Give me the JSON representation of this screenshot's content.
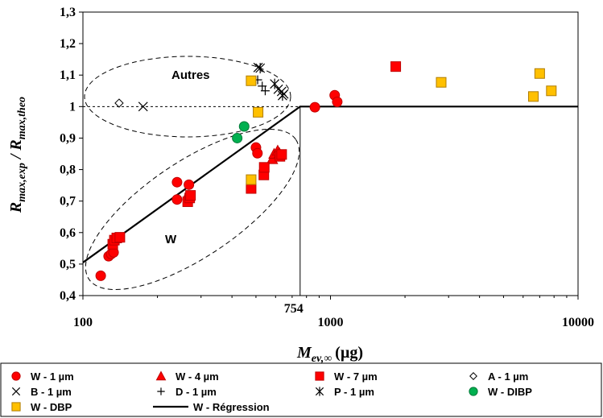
{
  "colors": {
    "red": "#ff0000",
    "red_stroke": "#c00000",
    "green": "#00b050",
    "green_stroke": "#007a38",
    "orange": "#ffc000",
    "orange_stroke": "#b07d00",
    "black": "#000000"
  },
  "chart_data": {
    "type": "scatter",
    "x_scale": "log",
    "xlim": [
      100,
      10000
    ],
    "ylim": [
      0.4,
      1.3
    ],
    "x_ticks": [
      "100",
      "1000",
      "10000"
    ],
    "extra_x_tick": "754",
    "y_ticks": [
      "0,4",
      "0,5",
      "0,6",
      "0,7",
      "0,8",
      "0,9",
      "1",
      "1,1",
      "1,2",
      "1,3"
    ],
    "xlabel": {
      "main": "M",
      "sub": "ev,∞",
      "unit": "(µg)"
    },
    "ylabel": {
      "r1": "R",
      "s1": "max,exp",
      "slash": " / ",
      "r2": "R",
      "s2": "max,theo"
    },
    "annotations": {
      "autres": "Autres",
      "w": "W"
    },
    "reference_line_y": 1,
    "vertical_line_x": 754,
    "series": [
      {
        "name": "W - 1 µm",
        "marker": "circle",
        "color": "red",
        "points": [
          [
            118,
            0.463
          ],
          [
            127,
            0.525
          ],
          [
            130,
            0.532
          ],
          [
            133,
            0.537
          ],
          [
            240,
            0.705
          ],
          [
            240,
            0.76
          ],
          [
            268,
            0.752
          ],
          [
            268,
            0.712
          ],
          [
            500,
            0.87
          ],
          [
            507,
            0.852
          ],
          [
            865,
            0.998
          ],
          [
            1040,
            1.036
          ],
          [
            1065,
            1.015
          ]
        ]
      },
      {
        "name": "W - 4 µm",
        "marker": "triangle",
        "color": "red",
        "points": [
          [
            582,
            0.833
          ],
          [
            592,
            0.85
          ],
          [
            612,
            0.86
          ],
          [
            622,
            0.852
          ]
        ]
      },
      {
        "name": "W - 7 µm",
        "marker": "square",
        "color": "red",
        "points": [
          [
            132,
            0.563
          ],
          [
            134,
            0.576
          ],
          [
            137,
            0.583
          ],
          [
            141,
            0.585
          ],
          [
            265,
            0.698
          ],
          [
            270,
            0.71
          ],
          [
            272,
            0.718
          ],
          [
            478,
            0.74
          ],
          [
            538,
            0.783
          ],
          [
            540,
            0.807
          ],
          [
            625,
            0.842
          ],
          [
            635,
            0.848
          ],
          [
            1835,
            1.127
          ]
        ]
      },
      {
        "name": "A - 1 µm",
        "marker": "diamond",
        "color": "black",
        "points": [
          [
            140,
            1.011
          ]
        ]
      },
      {
        "name": "B - 1 µm",
        "marker": "x",
        "color": "black",
        "points": [
          [
            175,
            1.0
          ],
          [
            510,
            1.124
          ],
          [
            615,
            1.055
          ],
          [
            635,
            1.048
          ],
          [
            648,
            1.04
          ]
        ]
      },
      {
        "name": "D - 1 µm",
        "marker": "plus",
        "color": "black",
        "points": [
          [
            508,
            1.085
          ],
          [
            530,
            1.065
          ],
          [
            545,
            1.05
          ]
        ]
      },
      {
        "name": "P - 1 µm",
        "marker": "asterisk",
        "color": "black",
        "points": [
          [
            520,
            1.122
          ],
          [
            595,
            1.072
          ],
          [
            640,
            1.035
          ]
        ]
      },
      {
        "name": "W - DIBP",
        "marker": "circle",
        "color": "green",
        "points": [
          [
            420,
            0.9
          ],
          [
            448,
            0.937
          ]
        ]
      },
      {
        "name": "W - DBP",
        "marker": "square",
        "color": "orange",
        "points": [
          [
            478,
            0.768
          ],
          [
            478,
            1.082
          ],
          [
            510,
            0.982
          ],
          [
            2800,
            1.077
          ],
          [
            6600,
            1.032
          ],
          [
            7000,
            1.105
          ],
          [
            7800,
            1.05
          ]
        ]
      },
      {
        "name": "W - Régression",
        "marker": "line",
        "color": "black",
        "points": [
          [
            100,
            0.505
          ],
          [
            754,
            1.0
          ],
          [
            10000,
            1.0
          ]
        ]
      }
    ]
  }
}
